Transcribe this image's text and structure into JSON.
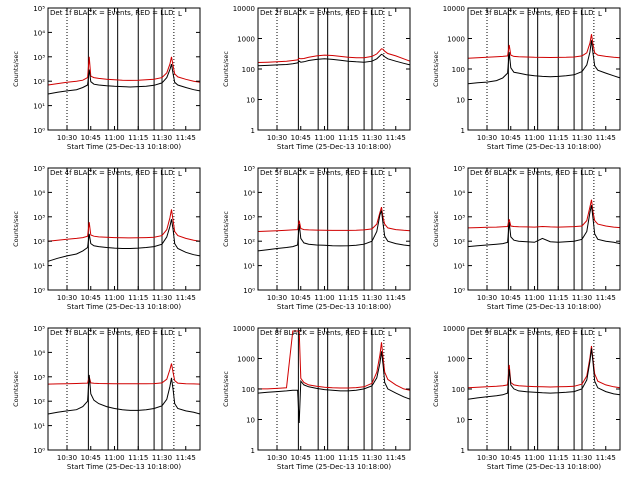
{
  "chart_data": {
    "type": "line",
    "xlabel": "Start Time (25-Dec-13 10:18:00)",
    "ylabel": "Counts/sec",
    "x_ticks": [
      "10:30",
      "10:45",
      "11:00",
      "11:15",
      "11:30",
      "11:45"
    ],
    "x_tick_minutes": [
      30,
      45,
      60,
      75,
      90,
      105
    ],
    "x_range_minutes": [
      18,
      114
    ],
    "panel_title_template": "Det {n}f BLACK = Events, RED = LLD",
    "legend_box": "L",
    "series_names": {
      "events": "Events",
      "lld": "LLD"
    },
    "colors": {
      "events": "#000000",
      "lld": "#d00000"
    },
    "solid_vlines_minutes": [
      43.5,
      56,
      62,
      75,
      85,
      90
    ],
    "dotted_vlines_minutes": [
      30,
      97.5
    ],
    "time_minutes": [
      18,
      24,
      30,
      36,
      40,
      43,
      44,
      45,
      47,
      50,
      55,
      60,
      65,
      70,
      75,
      80,
      85,
      90,
      93,
      95,
      96,
      97,
      98,
      100,
      105,
      110,
      114
    ],
    "panels": [
      {
        "det": "1f",
        "yscale": "log",
        "yticks": [
          "10⁰",
          "10¹",
          "10²",
          "10³",
          "10⁴",
          "10⁵"
        ],
        "ylim": [
          1,
          100000
        ],
        "events": [
          30,
          35,
          40,
          45,
          55,
          70,
          300,
          95,
          75,
          70,
          65,
          62,
          60,
          58,
          60,
          62,
          68,
          85,
          140,
          300,
          500,
          200,
          90,
          70,
          55,
          45,
          40
        ],
        "lld": [
          70,
          80,
          90,
          100,
          110,
          140,
          1000,
          160,
          140,
          130,
          120,
          115,
          110,
          108,
          110,
          115,
          120,
          140,
          220,
          500,
          1000,
          420,
          200,
          150,
          120,
          100,
          90
        ]
      },
      {
        "det": "2f",
        "yscale": "log",
        "yticks": [
          "1",
          "10",
          "100",
          "1000",
          "10000"
        ],
        "ylim": [
          1,
          12000
        ],
        "events": [
          140,
          145,
          150,
          155,
          165,
          175,
          200,
          185,
          190,
          210,
          230,
          240,
          230,
          215,
          200,
          190,
          185,
          200,
          240,
          300,
          340,
          320,
          280,
          240,
          200,
          170,
          150
        ],
        "lld": [
          180,
          185,
          190,
          200,
          210,
          220,
          250,
          240,
          245,
          270,
          300,
          320,
          310,
          290,
          270,
          260,
          260,
          290,
          350,
          450,
          520,
          500,
          430,
          360,
          300,
          240,
          200
        ]
      },
      {
        "det": "3f",
        "yscale": "log",
        "yticks": [
          "1",
          "10",
          "100",
          "1000",
          "10000"
        ],
        "ylim": [
          1,
          12000
        ],
        "events": [
          35,
          38,
          40,
          45,
          55,
          80,
          400,
          120,
          85,
          80,
          70,
          65,
          62,
          60,
          62,
          65,
          70,
          90,
          150,
          400,
          1000,
          350,
          140,
          100,
          80,
          65,
          55
        ],
        "lld": [
          250,
          260,
          270,
          280,
          290,
          300,
          700,
          320,
          290,
          280,
          275,
          270,
          268,
          265,
          268,
          270,
          275,
          300,
          380,
          800,
          1600,
          700,
          380,
          320,
          290,
          270,
          260
        ]
      },
      {
        "det": "4f",
        "yscale": "log",
        "yticks": [
          "10⁰",
          "10¹",
          "10²",
          "10³",
          "10⁴",
          "10⁵"
        ],
        "ylim": [
          1,
          100000
        ],
        "events": [
          15,
          20,
          25,
          30,
          40,
          55,
          200,
          80,
          65,
          60,
          55,
          52,
          50,
          50,
          52,
          55,
          60,
          75,
          150,
          400,
          800,
          300,
          80,
          50,
          35,
          28,
          25
        ],
        "lld": [
          100,
          110,
          120,
          130,
          140,
          160,
          600,
          180,
          160,
          150,
          145,
          140,
          138,
          136,
          138,
          140,
          145,
          170,
          300,
          900,
          2000,
          700,
          250,
          170,
          130,
          110,
          100
        ]
      },
      {
        "det": "5f",
        "yscale": "log",
        "yticks": [
          "10⁰",
          "10¹",
          "10²",
          "10³",
          "10⁴",
          "10⁵"
        ],
        "ylim": [
          1,
          100000
        ],
        "events": [
          40,
          45,
          50,
          55,
          60,
          70,
          500,
          130,
          85,
          75,
          70,
          68,
          65,
          64,
          65,
          68,
          75,
          100,
          250,
          1200,
          1800,
          500,
          160,
          100,
          80,
          70,
          65
        ],
        "lld": [
          250,
          260,
          270,
          280,
          290,
          300,
          700,
          330,
          300,
          290,
          285,
          280,
          278,
          276,
          278,
          280,
          290,
          320,
          500,
          1500,
          2500,
          900,
          500,
          350,
          300,
          280,
          270
        ]
      },
      {
        "det": "6f",
        "yscale": "log",
        "yticks": [
          "10⁰",
          "10¹",
          "10²",
          "10³",
          "10⁴",
          "10⁵"
        ],
        "ylim": [
          1,
          100000
        ],
        "events": [
          60,
          65,
          70,
          75,
          80,
          90,
          600,
          150,
          110,
          100,
          95,
          90,
          130,
          95,
          90,
          95,
          100,
          120,
          250,
          1500,
          3000,
          800,
          200,
          120,
          100,
          90,
          80
        ],
        "lld": [
          350,
          360,
          370,
          380,
          390,
          400,
          800,
          420,
          400,
          390,
          385,
          380,
          400,
          385,
          380,
          385,
          395,
          420,
          700,
          2500,
          5000,
          1500,
          700,
          500,
          420,
          380,
          360
        ]
      },
      {
        "det": "7f",
        "yscale": "log",
        "yticks": [
          "10⁰",
          "10¹",
          "10²",
          "10³",
          "10⁴",
          "10⁵"
        ],
        "ylim": [
          1,
          100000
        ],
        "events": [
          30,
          35,
          40,
          45,
          60,
          100,
          1200,
          200,
          110,
          80,
          60,
          50,
          45,
          42,
          42,
          45,
          50,
          65,
          120,
          400,
          900,
          300,
          80,
          50,
          40,
          35,
          30
        ],
        "lld": [
          500,
          510,
          520,
          530,
          540,
          550,
          1000,
          560,
          540,
          530,
          525,
          520,
          518,
          515,
          518,
          520,
          525,
          560,
          800,
          2000,
          3500,
          1500,
          700,
          550,
          520,
          510,
          500
        ]
      },
      {
        "det": "8f",
        "yscale": "log",
        "yticks": [
          "1",
          "10",
          "100",
          "1000",
          "10000"
        ],
        "ylim": [
          1,
          12000
        ],
        "events": [
          80,
          85,
          90,
          95,
          100,
          100,
          8,
          200,
          150,
          130,
          115,
          105,
          100,
          95,
          95,
          100,
          110,
          140,
          260,
          800,
          2000,
          700,
          180,
          110,
          80,
          60,
          50
        ],
        "lld": [
          110,
          110,
          115,
          120,
          9500,
          9500,
          9500,
          250,
          180,
          150,
          135,
          125,
          120,
          118,
          118,
          122,
          130,
          170,
          400,
          1500,
          4000,
          1200,
          400,
          230,
          150,
          110,
          100
        ]
      },
      {
        "det": "9f",
        "yscale": "log",
        "yticks": [
          "1",
          "10",
          "100",
          "1000",
          "10000"
        ],
        "ylim": [
          1,
          12000
        ],
        "events": [
          50,
          55,
          60,
          65,
          70,
          80,
          500,
          150,
          110,
          95,
          88,
          85,
          82,
          80,
          82,
          85,
          90,
          110,
          220,
          900,
          2500,
          800,
          200,
          120,
          90,
          75,
          70
        ],
        "lld": [
          120,
          125,
          130,
          135,
          140,
          150,
          700,
          180,
          150,
          140,
          135,
          132,
          130,
          128,
          130,
          132,
          135,
          160,
          300,
          1200,
          3000,
          1000,
          350,
          200,
          150,
          130,
          120
        ]
      }
    ]
  }
}
